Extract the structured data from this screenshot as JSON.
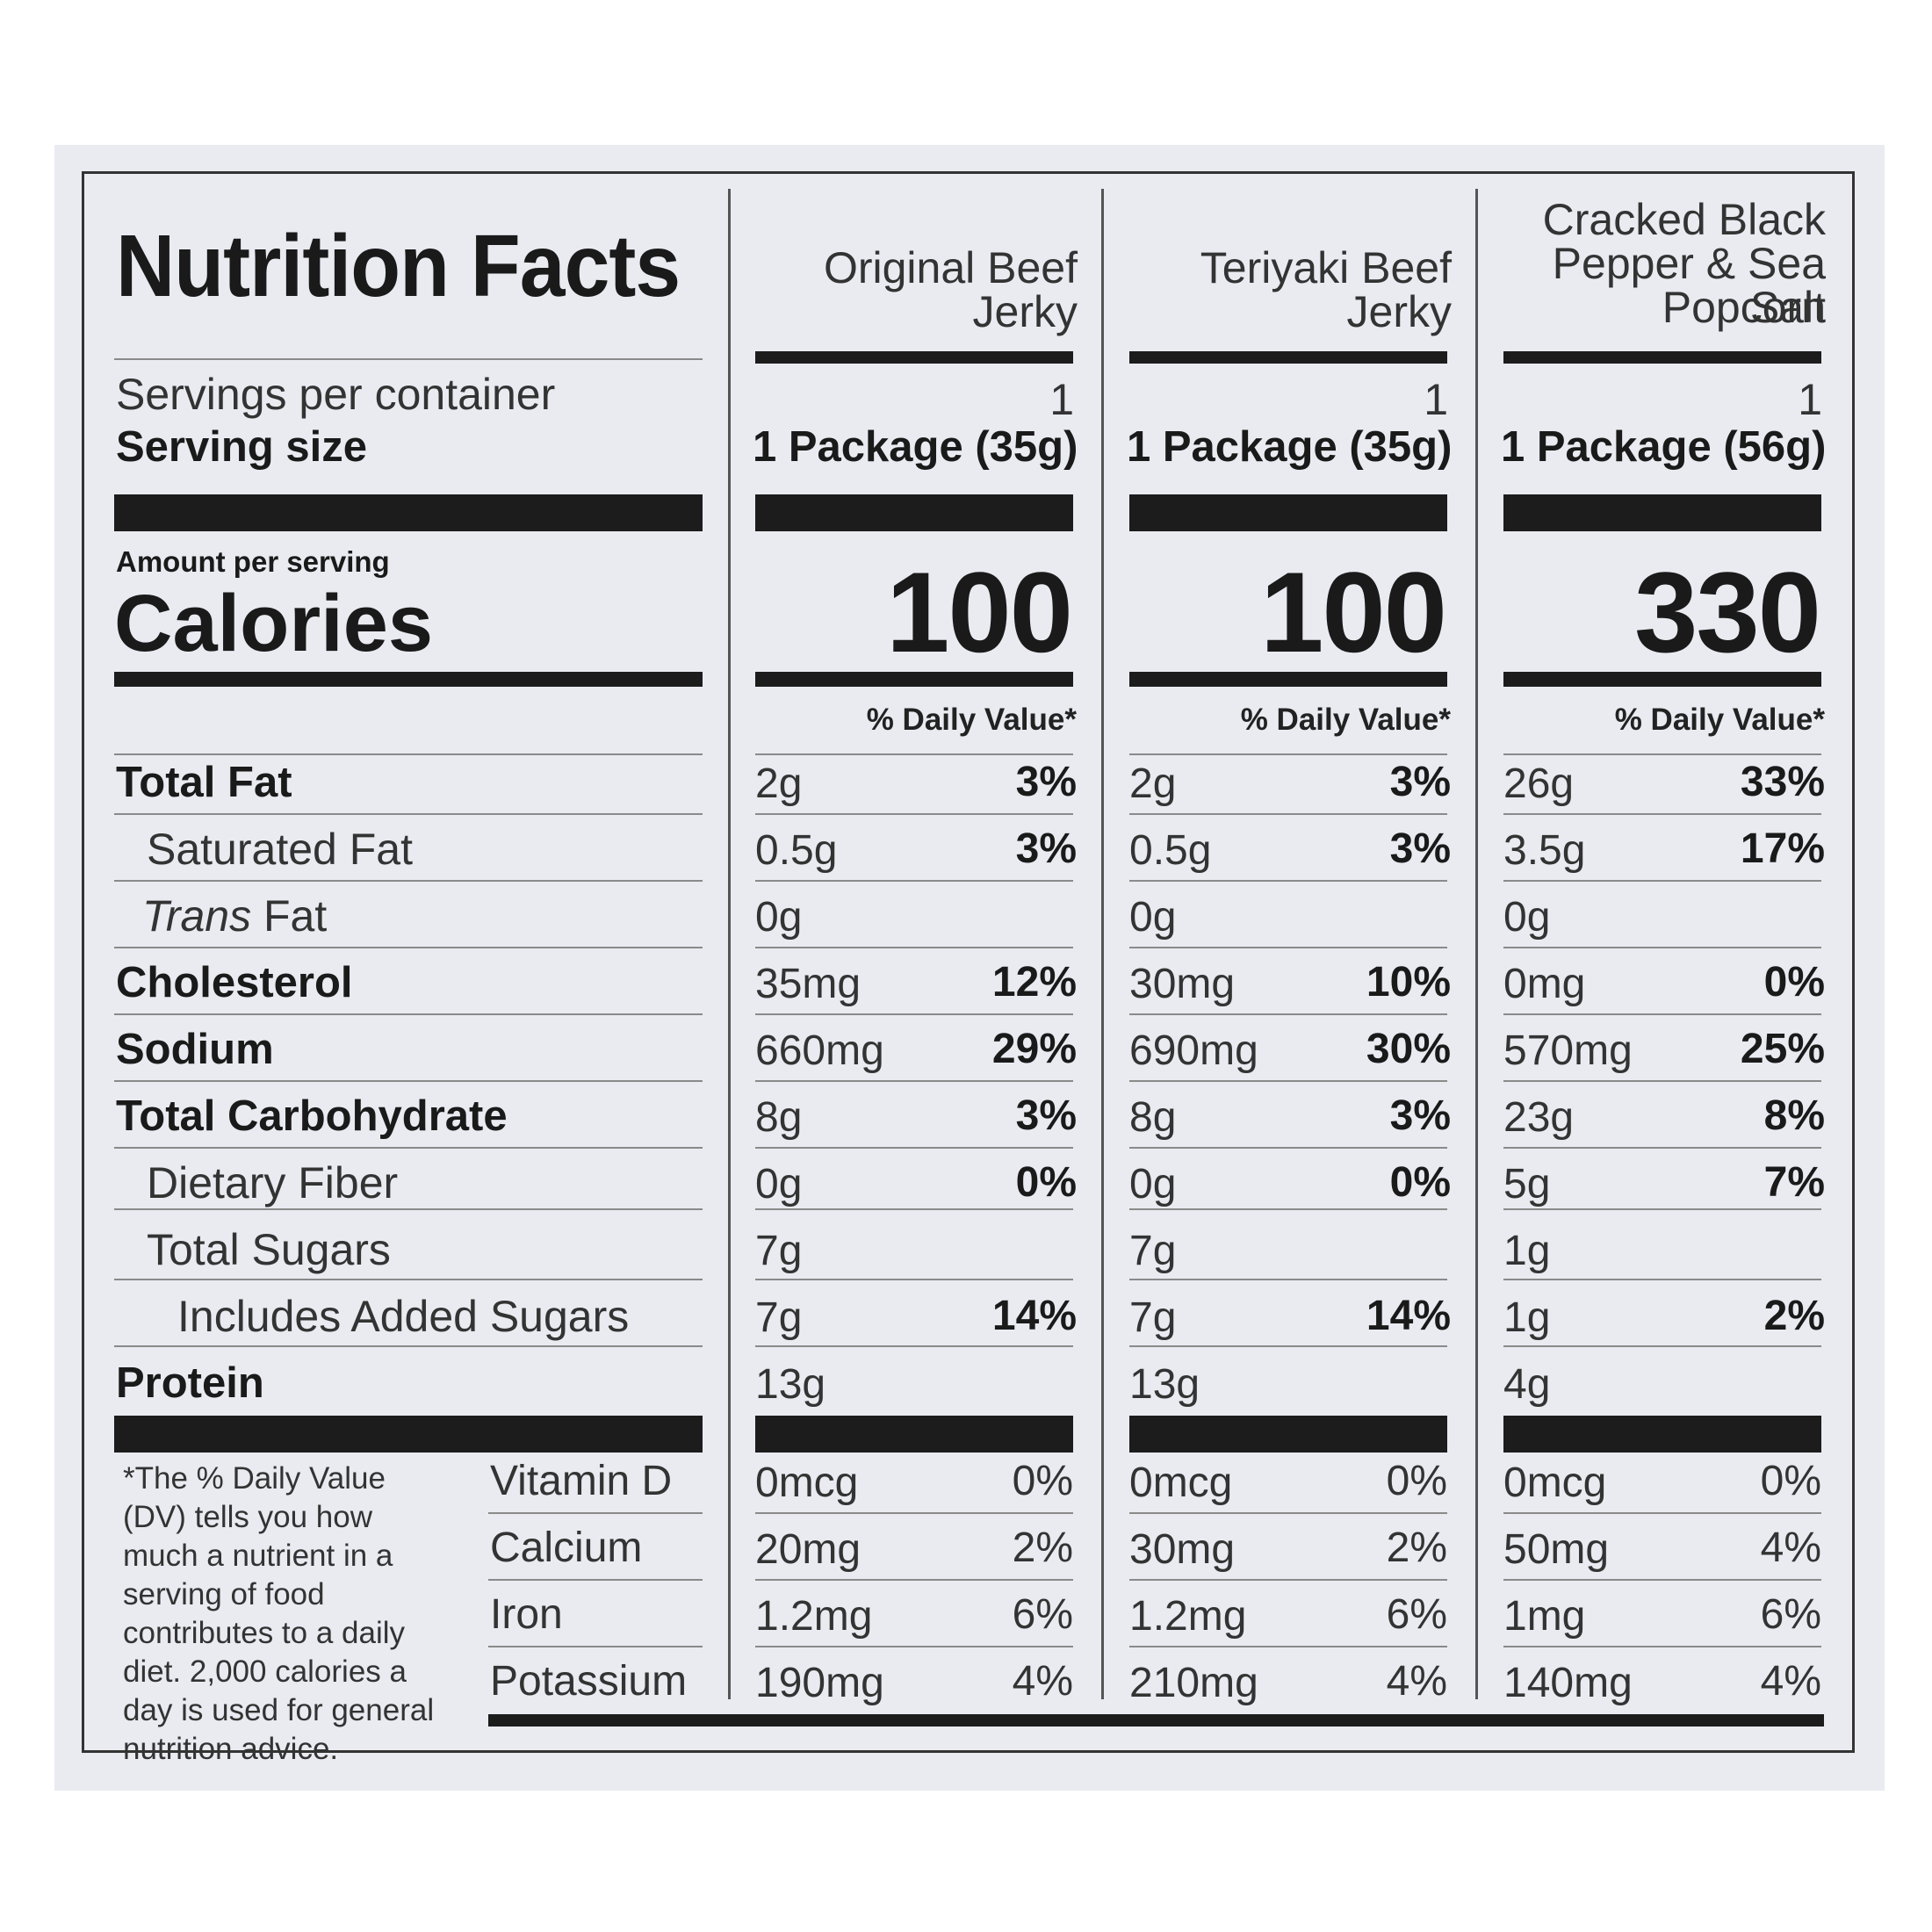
{
  "title": "Nutrition Facts",
  "servings_label": "Servings per container",
  "serving_size_label": "Serving size",
  "amount_per_serving": "Amount per serving",
  "calories_label": "Calories",
  "nutrient_labels": {
    "total_fat": "Total Fat",
    "saturated_fat": "Saturated Fat",
    "trans_fat_italic": "Trans",
    "trans_fat_rest": " Fat",
    "cholesterol": "Cholesterol",
    "sodium": "Sodium",
    "total_carbohydrate": "Total Carbohydrate",
    "dietary_fiber": "Dietary Fiber",
    "total_sugars": "Total Sugars",
    "added_sugars": "Includes Added Sugars",
    "protein": "Protein",
    "vitamin_d": "Vitamin D",
    "calcium": "Calcium",
    "iron": "Iron",
    "potassium": "Potassium"
  },
  "footnote": "*The % Daily Value (DV) tells you how much a nutrient in a serving of food contributes to a daily diet. 2,000 calories a day is used for general nutrition advice.",
  "columns": [
    {
      "name_lines": [
        "Original Beef",
        "Jerky"
      ],
      "servings": "1",
      "serving_size": "1 Package (35g)",
      "calories": "100",
      "dv_header": "% Daily Value*",
      "total_fat": {
        "amount": "2g",
        "dv": "3%"
      },
      "saturated_fat": {
        "amount": "0.5g",
        "dv": "3%"
      },
      "trans_fat": {
        "amount": "0g"
      },
      "cholesterol": {
        "amount": "35mg",
        "dv": "12%"
      },
      "sodium": {
        "amount": "660mg",
        "dv": "29%"
      },
      "total_carbohydrate": {
        "amount": "8g",
        "dv": "3%"
      },
      "dietary_fiber": {
        "amount": "0g",
        "dv": "0%"
      },
      "total_sugars": {
        "amount": "7g"
      },
      "added_sugars": {
        "amount": "7g",
        "dv": "14%"
      },
      "protein": {
        "amount": "13g"
      },
      "vitamin_d": {
        "amount": "0mcg",
        "dv": "0%"
      },
      "calcium": {
        "amount": "20mg",
        "dv": "2%"
      },
      "iron": {
        "amount": "1.2mg",
        "dv": "6%"
      },
      "potassium": {
        "amount": "190mg",
        "dv": "4%"
      }
    },
    {
      "name_lines": [
        "Teriyaki Beef",
        "Jerky"
      ],
      "servings": "1",
      "serving_size": "1 Package (35g)",
      "calories": "100",
      "dv_header": "% Daily Value*",
      "total_fat": {
        "amount": "2g",
        "dv": "3%"
      },
      "saturated_fat": {
        "amount": "0.5g",
        "dv": "3%"
      },
      "trans_fat": {
        "amount": "0g"
      },
      "cholesterol": {
        "amount": "30mg",
        "dv": "10%"
      },
      "sodium": {
        "amount": "690mg",
        "dv": "30%"
      },
      "total_carbohydrate": {
        "amount": "8g",
        "dv": "3%"
      },
      "dietary_fiber": {
        "amount": "0g",
        "dv": "0%"
      },
      "total_sugars": {
        "amount": "7g"
      },
      "added_sugars": {
        "amount": "7g",
        "dv": "14%"
      },
      "protein": {
        "amount": "13g"
      },
      "vitamin_d": {
        "amount": "0mcg",
        "dv": "0%"
      },
      "calcium": {
        "amount": "30mg",
        "dv": "2%"
      },
      "iron": {
        "amount": "1.2mg",
        "dv": "6%"
      },
      "potassium": {
        "amount": "210mg",
        "dv": "4%"
      }
    },
    {
      "name_lines": [
        "Cracked Black",
        "Pepper & Sea Salt",
        "Popcorn"
      ],
      "servings": "1",
      "serving_size": "1 Package (56g)",
      "calories": "330",
      "dv_header": "% Daily Value*",
      "total_fat": {
        "amount": "26g",
        "dv": "33%"
      },
      "saturated_fat": {
        "amount": "3.5g",
        "dv": "17%"
      },
      "trans_fat": {
        "amount": "0g"
      },
      "cholesterol": {
        "amount": "0mg",
        "dv": "0%"
      },
      "sodium": {
        "amount": "570mg",
        "dv": "25%"
      },
      "total_carbohydrate": {
        "amount": "23g",
        "dv": "8%"
      },
      "dietary_fiber": {
        "amount": "5g",
        "dv": "7%"
      },
      "total_sugars": {
        "amount": "1g"
      },
      "added_sugars": {
        "amount": "1g",
        "dv": "2%"
      },
      "protein": {
        "amount": "4g"
      },
      "vitamin_d": {
        "amount": "0mcg",
        "dv": "0%"
      },
      "calcium": {
        "amount": "50mg",
        "dv": "4%"
      },
      "iron": {
        "amount": "1mg",
        "dv": "6%"
      },
      "potassium": {
        "amount": "140mg",
        "dv": "4%"
      }
    }
  ]
}
